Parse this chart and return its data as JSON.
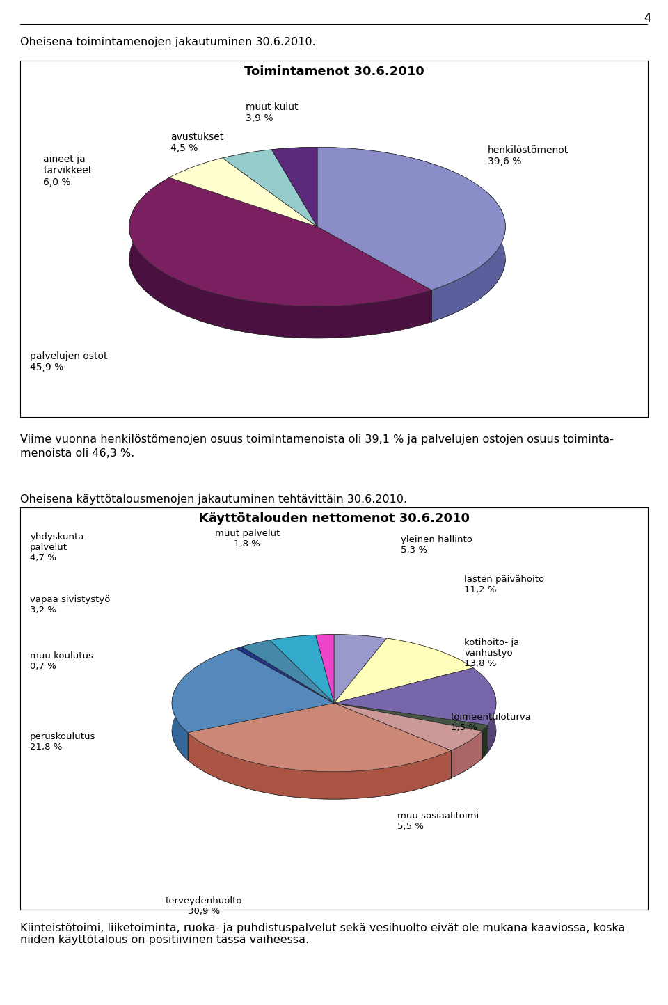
{
  "page_number": "4",
  "intro_text1": "Oheisena toimintamenojen jakautuminen 30.6.2010.",
  "chart1_title": "Toimintamenot 30.6.2010",
  "chart1_slices": [
    39.6,
    45.9,
    6.0,
    4.5,
    3.9
  ],
  "chart1_colors": [
    "#8B8DC8",
    "#7A2060",
    "#FFFFD0",
    "#96CCCC",
    "#5C2A7A"
  ],
  "chart1_dark_colors": [
    "#5A5E9A",
    "#4A1040",
    "#D0D0A0",
    "#66AAAA",
    "#3C1A5A"
  ],
  "middle_text": "Viime vuonna henkilöstömenojen osuus toimintamenoista oli 39,1 % ja palvelujen ostojen osuus toiminta-\nmenoista oli 46,3 %.",
  "intro_text2": "Oheisena käyttötalousmenojen jakautuminen tehtävittäin 30.6.2010.",
  "chart2_title": "Käyttötalouden nettomenot 30.6.2010",
  "chart2_slices": [
    5.3,
    11.2,
    13.8,
    1.5,
    5.5,
    30.9,
    21.8,
    0.7,
    3.2,
    4.7,
    1.8
  ],
  "chart2_colors": [
    "#9999CC",
    "#FFFFBB",
    "#7766AA",
    "#445544",
    "#CC9999",
    "#CC8877",
    "#5588BB",
    "#223388",
    "#4488AA",
    "#33AACC",
    "#EE44CC"
  ],
  "chart2_dark_colors": [
    "#666699",
    "#CCCC88",
    "#554477",
    "#223322",
    "#AA6666",
    "#AA5544",
    "#336699",
    "#112266",
    "#226688",
    "#1188AA",
    "#CC22AA"
  ],
  "footer_text": "Kiinteistötoimi, liiketoiminta, ruoka- ja puhdistuspalvelut sekä vesihuolto eivät ole mukana kaaviossa, koska\nniiden käyttötalous on positiivinen tässä vaiheessa.",
  "bg_color": "#FFFFFF"
}
